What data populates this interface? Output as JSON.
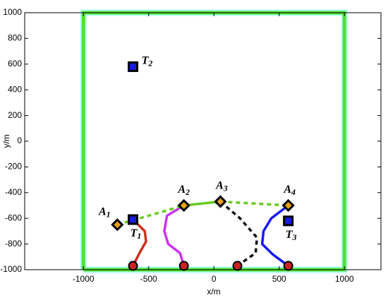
{
  "chart_data": {
    "type": "line",
    "xlabel": "x/m",
    "ylabel": "y/m",
    "xlim": [
      -1450,
      1280
    ],
    "ylim": [
      -1000,
      1000
    ],
    "xticks": [
      -1000,
      -500,
      0,
      500,
      1000
    ],
    "yticks": [
      -1000,
      -800,
      -600,
      -400,
      -200,
      0,
      200,
      400,
      600,
      800,
      1000
    ],
    "boundary": {
      "color": "#55e033",
      "x": [
        -1000,
        1000,
        1000,
        -1000,
        -1000
      ],
      "y": [
        -1000,
        -1000,
        1000,
        1000,
        -1000
      ]
    },
    "series": [
      {
        "color": "#c8321e",
        "dash": false,
        "x": [
          -620,
          -530,
          -520,
          -570,
          -620
        ],
        "y": [
          -610,
          -700,
          -780,
          -870,
          -970
        ]
      },
      {
        "color": "#cc33ee",
        "dash": false,
        "x": [
          -230,
          -360,
          -380,
          -350,
          -260,
          -230
        ],
        "y": [
          -500,
          -580,
          -700,
          -800,
          -870,
          -970
        ]
      },
      {
        "color": "#111111",
        "dash": true,
        "x": [
          50,
          200,
          330,
          320,
          180
        ],
        "y": [
          -470,
          -600,
          -750,
          -870,
          -970
        ]
      },
      {
        "color": "#1a1aee",
        "dash": false,
        "x": [
          570,
          440,
          380,
          370,
          450,
          570
        ],
        "y": [
          -500,
          -600,
          -700,
          -800,
          -880,
          -970
        ]
      },
      {
        "color": "#66cc22",
        "dash": true,
        "x": [
          -740,
          -230
        ],
        "y": [
          -650,
          -500
        ]
      },
      {
        "color": "#66cc22",
        "dash": false,
        "x": [
          -230,
          50
        ],
        "y": [
          -500,
          -470
        ]
      },
      {
        "color": "#66cc22",
        "dash": true,
        "x": [
          50,
          570
        ],
        "y": [
          -470,
          -500
        ]
      }
    ],
    "starts": {
      "color": "#cc2222",
      "x": [
        -620,
        -230,
        180,
        570
      ],
      "y": [
        -970,
        -970,
        -970,
        -970
      ]
    },
    "agents": {
      "color": "#e8a317",
      "x": [
        -740,
        -230,
        50,
        570
      ],
      "y": [
        -650,
        -500,
        -470,
        -500
      ],
      "labels": [
        {
          "letter": "A",
          "sub": "1"
        },
        {
          "letter": "A",
          "sub": "2"
        },
        {
          "letter": "A",
          "sub": "3"
        },
        {
          "letter": "A",
          "sub": "4"
        }
      ]
    },
    "targets": {
      "color": "#1a1aee",
      "x": [
        -620,
        -620,
        570
      ],
      "y": [
        -610,
        580,
        -620
      ],
      "labels": [
        {
          "letter": "T",
          "sub": "1"
        },
        {
          "letter": "T",
          "sub": "2"
        },
        {
          "letter": "T",
          "sub": "3"
        }
      ]
    }
  }
}
